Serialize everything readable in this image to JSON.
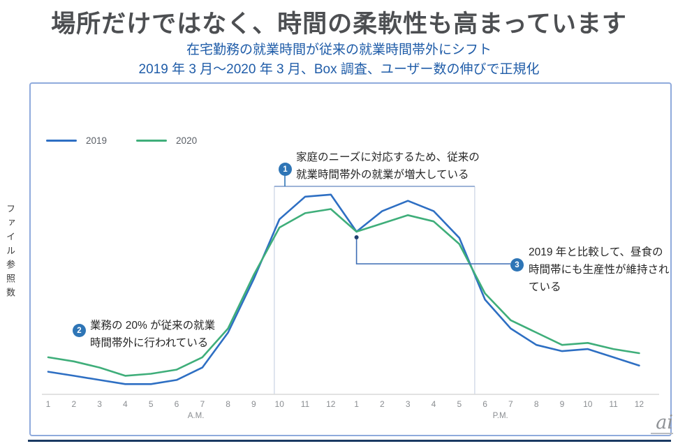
{
  "slide": {
    "title": "場所だけではなく、時間の柔軟性も高まっています",
    "subtitle_line1": "在宅勤務の就業時間が従来の就業時間帯外にシフト",
    "subtitle_line2": "2019 年 3 月～2020 年 3 月、Box 調査、ユーザー数の伸びで正規化"
  },
  "chart_data": {
    "type": "line",
    "title": "",
    "ylabel": "ファイル参照数",
    "x_hours": [
      "1",
      "2",
      "3",
      "4",
      "5",
      "6",
      "7",
      "8",
      "9",
      "10",
      "11",
      "12",
      "1",
      "2",
      "3",
      "4",
      "5",
      "6",
      "7",
      "8",
      "9",
      "10",
      "11",
      "12"
    ],
    "x_period_labels": [
      "A.M.",
      "P.M."
    ],
    "series": [
      {
        "name": "2019",
        "color": "#2e6fc3",
        "values": [
          11,
          9,
          7,
          5,
          5,
          7,
          13,
          30,
          56,
          85,
          96,
          97,
          79,
          89,
          94,
          89,
          76,
          46,
          32,
          24,
          21,
          22,
          18,
          14
        ]
      },
      {
        "name": "2020",
        "color": "#3fae7a",
        "values": [
          18,
          16,
          13,
          9,
          10,
          12,
          18,
          32,
          58,
          81,
          88,
          90,
          79,
          83,
          87,
          84,
          73,
          49,
          36,
          30,
          24,
          25,
          22,
          20
        ]
      }
    ],
    "ylim": [
      0,
      100
    ],
    "grid": false,
    "legend_position": "top-left",
    "highlight_box": {
      "start_hour_index": 8.8,
      "end_hour_index": 16.6
    },
    "lunch_dip_hour_index": 12
  },
  "legend": [
    {
      "label": "2019",
      "color": "#2e6fc3"
    },
    {
      "label": "2020",
      "color": "#3fae7a"
    }
  ],
  "annotations": [
    {
      "number": "1",
      "lines": [
        "家庭のニーズに対応するため、従来の",
        "就業時間帯外の就業が増大している"
      ]
    },
    {
      "number": "2",
      "lines": [
        "業務の 20% が従来の就業",
        "時間帯外に行われている"
      ]
    },
    {
      "number": "3",
      "lines": [
        "2019 年と比較して、昼食の",
        "時間帯にも生産性が維持され",
        "ている"
      ]
    }
  ],
  "colors": {
    "accent_badge": "#2e75b6",
    "card_border": "#8faadc",
    "box_side": "#d4dce9",
    "box_top": "#7d9bca",
    "connector": "#3c6cb4",
    "axis_line": "#d9d9d9",
    "tick_text": "#8a8d91",
    "footer_rule": "#1b3a63"
  },
  "footer": {
    "logo_text": "ai"
  }
}
